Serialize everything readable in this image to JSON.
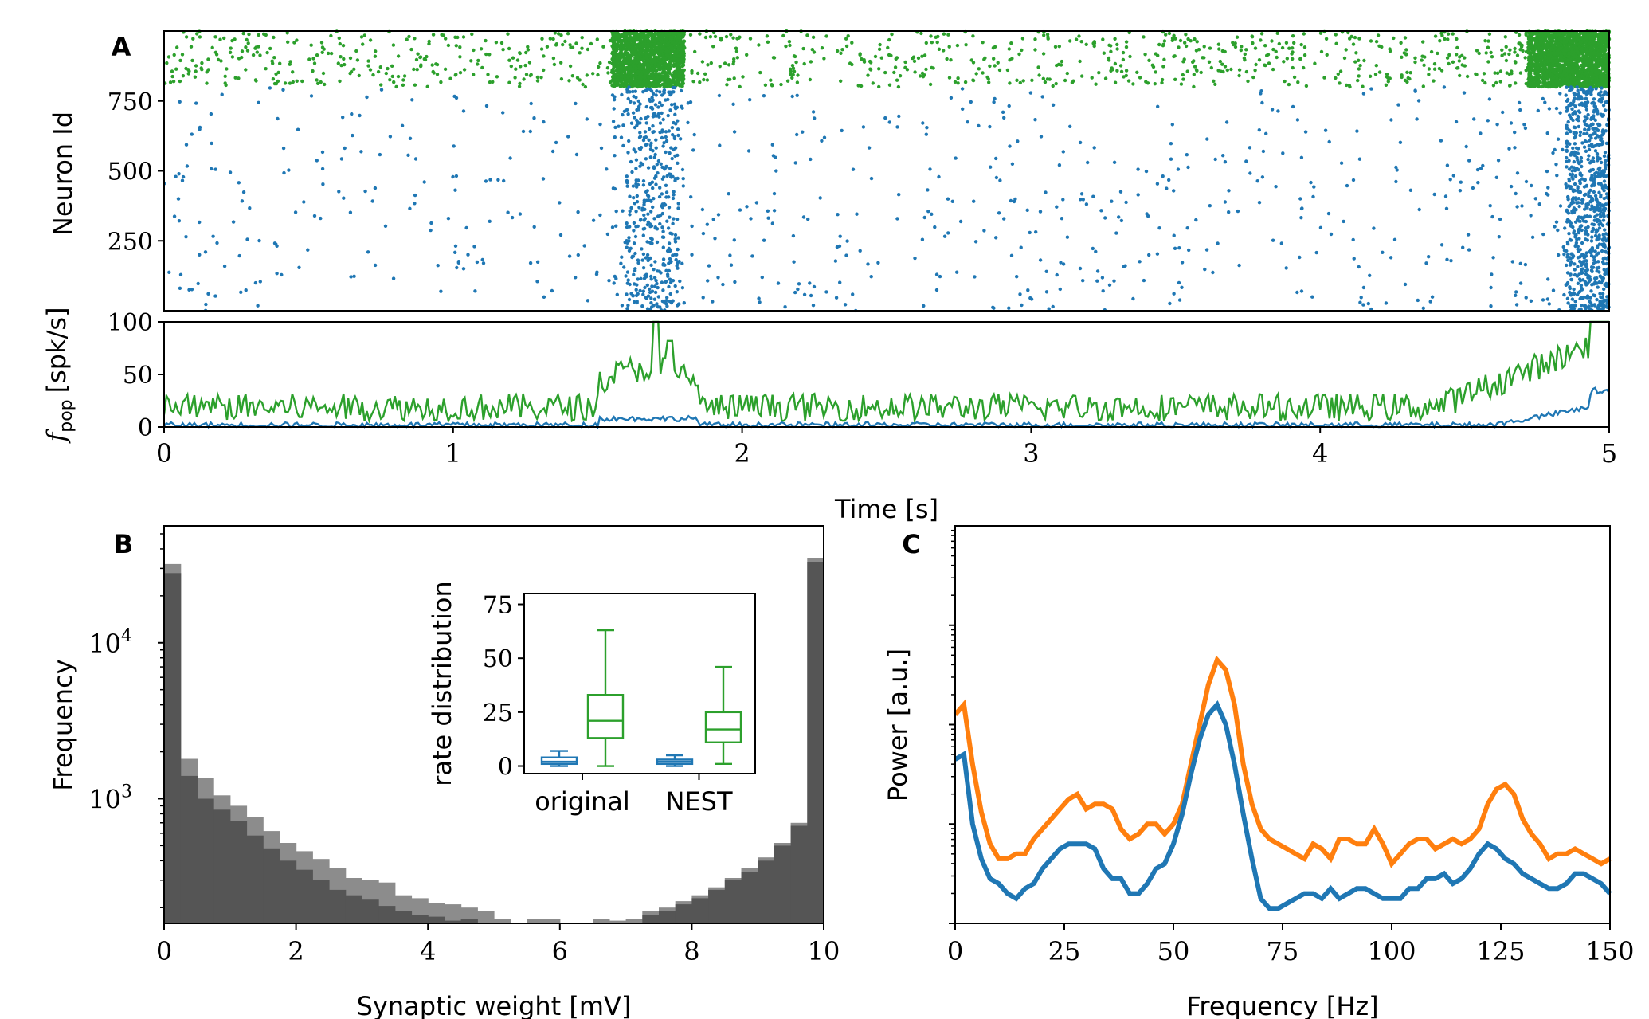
{
  "colors": {
    "excitatory": "#2ca02c",
    "inhibitory": "#1f77b4",
    "nest_power": "#ff7f0e",
    "hist_light": "#8c8c8c",
    "hist_dark": "#555555"
  },
  "chart_data": [
    {
      "id": "A-raster",
      "panel": "A",
      "type": "scatter",
      "ylabel": "Neuron Id",
      "xlim": [
        0,
        5
      ],
      "ylim": [
        0,
        1000
      ],
      "yticks": [
        "250",
        "500",
        "750"
      ],
      "series": [
        {
          "population": "inhibitory",
          "neuron_range": [
            0,
            800
          ],
          "burst_windows_s": [
            [
              1.55,
              1.8
            ],
            [
              4.7,
              5.0
            ]
          ]
        },
        {
          "population": "excitatory",
          "neuron_range": [
            800,
            1000
          ],
          "burst_windows_s": [
            [
              1.55,
              1.8
            ],
            [
              4.7,
              5.0
            ]
          ]
        }
      ]
    },
    {
      "id": "A-rate",
      "type": "line",
      "ylabel_main": "f",
      "ylabel_sub": "pop",
      "ylabel_unit": "[spk/s]",
      "xlabel": "Time [s]",
      "xlim": [
        0,
        5
      ],
      "ylim": [
        0,
        100
      ],
      "xticks": [
        "0",
        "1",
        "2",
        "3",
        "4",
        "5"
      ],
      "yticks": [
        "0",
        "50",
        "100"
      ],
      "series": [
        {
          "population": "excitatory",
          "baseline": 15,
          "peaks": [
            {
              "t": 1.7,
              "value": 100
            },
            {
              "t": 4.95,
              "value": 100
            }
          ]
        },
        {
          "population": "inhibitory",
          "baseline": 2,
          "peaks": [
            {
              "t": 1.7,
              "value": 15
            },
            {
              "t": 4.95,
              "value": 38
            }
          ]
        }
      ]
    },
    {
      "id": "B-hist",
      "panel": "B",
      "type": "bar",
      "xlabel": "Synaptic weight [mV]",
      "ylabel": "Frequency",
      "log_y": true,
      "xlim": [
        0,
        10
      ],
      "ylim_log10": [
        2.2,
        4.75
      ],
      "xticks": [
        "0",
        "2",
        "4",
        "6",
        "8",
        "10"
      ],
      "yticks": [
        {
          "base": "10",
          "exp": "3"
        },
        {
          "base": "10",
          "exp": "4"
        }
      ],
      "bin_width": 0.25,
      "series": [
        {
          "style": "light",
          "values": [
            32000,
            1800,
            1350,
            1050,
            900,
            760,
            620,
            520,
            460,
            410,
            360,
            310,
            300,
            290,
            240,
            230,
            215,
            210,
            200,
            190,
            170,
            0,
            170,
            170,
            0,
            0,
            170,
            165,
            170,
            190,
            200,
            220,
            240,
            270,
            310,
            360,
            420,
            520,
            700,
            35000
          ]
        },
        {
          "style": "dark",
          "values": [
            28000,
            1400,
            1000,
            850,
            720,
            580,
            480,
            400,
            350,
            300,
            260,
            240,
            225,
            205,
            190,
            180,
            175,
            165,
            170,
            160,
            150,
            0,
            150,
            150,
            0,
            0,
            160,
            160,
            160,
            180,
            190,
            210,
            230,
            260,
            300,
            340,
            400,
            500,
            670,
            33000
          ]
        }
      ],
      "inset": {
        "type": "box",
        "ylabel": "rate distribution",
        "ylim": [
          0,
          75
        ],
        "yticks": [
          "0",
          "25",
          "50",
          "75"
        ],
        "categories": [
          "original",
          "NEST"
        ],
        "boxes": [
          {
            "group": "original",
            "population": "inhibitory",
            "whislo": 0,
            "q1": 1,
            "med": 2,
            "q3": 4,
            "whishi": 7
          },
          {
            "group": "original",
            "population": "excitatory",
            "whislo": 0,
            "q1": 13,
            "med": 21,
            "q3": 33,
            "whishi": 63
          },
          {
            "group": "NEST",
            "population": "inhibitory",
            "whislo": 0,
            "q1": 1,
            "med": 2,
            "q3": 3,
            "whishi": 5
          },
          {
            "group": "NEST",
            "population": "excitatory",
            "whislo": 1,
            "q1": 11,
            "med": 17,
            "q3": 25,
            "whishi": 46
          }
        ]
      }
    },
    {
      "id": "C-power",
      "panel": "C",
      "type": "line",
      "xlabel": "Frequency [Hz]",
      "ylabel": "Power [a.u.]",
      "log_y": true,
      "xlim": [
        0,
        150
      ],
      "ylim_log10": [
        -1,
        3
      ],
      "xticks": [
        "0",
        "25",
        "50",
        "75",
        "100",
        "125",
        "150"
      ],
      "series": [
        {
          "color_key": "nest_power",
          "x": [
            0,
            2,
            4,
            6,
            8,
            10,
            12,
            14,
            16,
            18,
            20,
            22,
            24,
            26,
            28,
            30,
            32,
            34,
            36,
            38,
            40,
            42,
            44,
            46,
            48,
            50,
            52,
            54,
            56,
            58,
            60,
            62,
            64,
            66,
            68,
            70,
            72,
            74,
            76,
            78,
            80,
            82,
            84,
            86,
            88,
            90,
            92,
            94,
            96,
            98,
            100,
            102,
            104,
            106,
            108,
            110,
            112,
            114,
            116,
            118,
            120,
            122,
            124,
            126,
            128,
            130,
            132,
            134,
            136,
            138,
            140,
            142,
            144,
            146,
            148,
            150
          ],
          "y": [
            1.1,
            1.2,
            0.6,
            0.12,
            -0.2,
            -0.35,
            -0.35,
            -0.3,
            -0.3,
            -0.15,
            -0.05,
            0.05,
            0.15,
            0.25,
            0.3,
            0.15,
            0.2,
            0.2,
            0.15,
            -0.05,
            -0.15,
            -0.1,
            0.0,
            0.0,
            -0.1,
            0.0,
            0.2,
            0.6,
            1.0,
            1.4,
            1.65,
            1.55,
            1.2,
            0.6,
            0.2,
            -0.05,
            -0.15,
            -0.2,
            -0.25,
            -0.3,
            -0.35,
            -0.2,
            -0.25,
            -0.35,
            -0.15,
            -0.15,
            -0.2,
            -0.2,
            -0.05,
            -0.2,
            -0.4,
            -0.3,
            -0.2,
            -0.15,
            -0.15,
            -0.25,
            -0.2,
            -0.15,
            -0.2,
            -0.15,
            -0.05,
            0.2,
            0.35,
            0.4,
            0.3,
            0.05,
            -0.1,
            -0.2,
            -0.35,
            -0.3,
            -0.3,
            -0.25,
            -0.3,
            -0.35,
            -0.4,
            -0.35
          ]
        },
        {
          "color_key": "inhibitory",
          "x": [
            0,
            2,
            4,
            6,
            8,
            10,
            12,
            14,
            16,
            18,
            20,
            22,
            24,
            26,
            28,
            30,
            32,
            34,
            36,
            38,
            40,
            42,
            44,
            46,
            48,
            50,
            52,
            54,
            56,
            58,
            60,
            62,
            64,
            66,
            68,
            70,
            72,
            74,
            76,
            78,
            80,
            82,
            84,
            86,
            88,
            90,
            92,
            94,
            96,
            98,
            100,
            102,
            104,
            106,
            108,
            110,
            112,
            114,
            116,
            118,
            120,
            122,
            124,
            126,
            128,
            130,
            132,
            134,
            136,
            138,
            140,
            142,
            144,
            146,
            148,
            150
          ],
          "y": [
            0.65,
            0.7,
            0.0,
            -0.35,
            -0.55,
            -0.6,
            -0.7,
            -0.75,
            -0.65,
            -0.6,
            -0.45,
            -0.35,
            -0.25,
            -0.2,
            -0.2,
            -0.2,
            -0.25,
            -0.45,
            -0.55,
            -0.55,
            -0.7,
            -0.7,
            -0.6,
            -0.45,
            -0.4,
            -0.2,
            0.1,
            0.5,
            0.85,
            1.1,
            1.2,
            1.0,
            0.6,
            0.1,
            -0.35,
            -0.75,
            -0.85,
            -0.85,
            -0.8,
            -0.75,
            -0.7,
            -0.7,
            -0.75,
            -0.65,
            -0.75,
            -0.7,
            -0.65,
            -0.65,
            -0.7,
            -0.75,
            -0.75,
            -0.75,
            -0.65,
            -0.65,
            -0.55,
            -0.55,
            -0.5,
            -0.6,
            -0.55,
            -0.45,
            -0.3,
            -0.2,
            -0.25,
            -0.35,
            -0.4,
            -0.5,
            -0.55,
            -0.6,
            -0.65,
            -0.65,
            -0.6,
            -0.5,
            -0.5,
            -0.55,
            -0.6,
            -0.7
          ]
        }
      ]
    }
  ]
}
